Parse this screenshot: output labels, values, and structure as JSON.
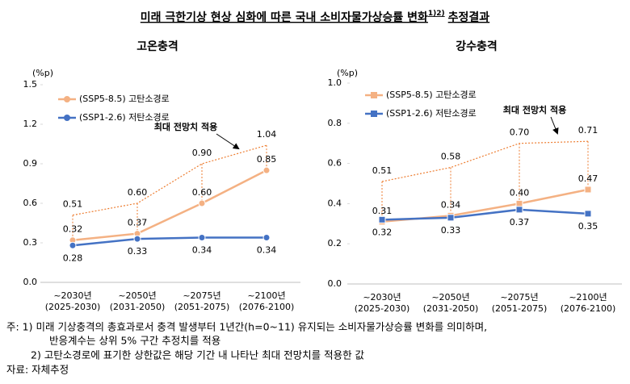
{
  "title": {
    "text": "미래 극한기상 현상 심화에 따른 국내 소비자물가상승률 변화",
    "superscript": "1)2)",
    "suffix": "추정결과"
  },
  "chart_data": [
    {
      "type": "line",
      "title": "고온충격",
      "y_label": "(%p)",
      "marker": "circle",
      "categories": [
        "~2030년",
        "~2050년",
        "~2075년",
        "~2100년"
      ],
      "category_sublabels": [
        "(2025-2030)",
        "(2031-2050)",
        "(2051-2075)",
        "(2076-2100)"
      ],
      "ylim": [
        0,
        1.5
      ],
      "yticks": [
        {
          "value": 0,
          "label": "0.0"
        },
        0.3,
        0.6,
        0.9,
        1.2,
        1.5
      ],
      "annotation": "최대 전망치 적용",
      "series": [
        {
          "name": "(SSP5-8.5) 고탄소경로",
          "color": "#f4b183",
          "values": [
            0.32,
            0.37,
            0.6,
            0.85
          ],
          "value_labels": [
            "0.32",
            "0.37",
            "0.60",
            "0.85"
          ],
          "label_position": "above"
        },
        {
          "name": "(SSP1-2.6) 저탄소경로",
          "color": "#4472c4",
          "values": [
            0.28,
            0.33,
            0.34,
            0.34
          ],
          "value_labels": [
            "0.28",
            "0.33",
            "0.34",
            "0.34"
          ],
          "label_position": "below"
        },
        {
          "color": "#ed7d31",
          "line_style": "dotted",
          "drop_lines": true,
          "values": [
            0.51,
            0.6,
            0.9,
            1.04
          ],
          "value_labels": [
            "0.51",
            "0.60",
            "0.90",
            "1.04"
          ],
          "label_position": "above"
        }
      ]
    },
    {
      "type": "line",
      "title": "강수충격",
      "y_label": "(%p)",
      "marker": "square",
      "categories": [
        "~2030년",
        "~2050년",
        "~2075년",
        "~2100년"
      ],
      "category_sublabels": [
        "(2025-2030)",
        "(2031-2050)",
        "(2051-2075)",
        "(2076-2100)"
      ],
      "ylim": [
        0,
        1.0
      ],
      "yticks": [
        {
          "value": 0,
          "label": "0.0"
        },
        0.2,
        0.4,
        0.6,
        0.8,
        {
          "value": 1.0,
          "label": "1.0"
        }
      ],
      "annotation": "최대 전망치 적용",
      "series": [
        {
          "name": "(SSP5-8.5) 고탄소경로",
          "color": "#f4b183",
          "values": [
            0.31,
            0.34,
            0.4,
            0.47
          ],
          "value_labels": [
            "0.31",
            "0.34",
            "0.40",
            "0.47"
          ],
          "label_position": "above"
        },
        {
          "name": "(SSP1-2.6) 저탄소경로",
          "color": "#4472c4",
          "values": [
            0.32,
            0.33,
            0.37,
            0.35
          ],
          "value_labels": [
            "0.32",
            "0.33",
            "0.37",
            "0.35"
          ],
          "label_position": "below"
        },
        {
          "color": "#ed7d31",
          "line_style": "dotted",
          "drop_lines": true,
          "values": [
            0.51,
            0.58,
            0.7,
            0.71
          ],
          "value_labels": [
            "0.51",
            "0.58",
            "0.70",
            "0.71"
          ],
          "label_position": "above"
        }
      ]
    }
  ],
  "notes": [
    "주: 1) 미래 기상충격의 총효과로서 충격 발생부터 1년간(h=0~11) 유지되는 소비자물가상승률 변화를 의미하며,",
    "반응계수는 상위 5% 구간 추정치를 적용",
    "2) 고탄소경로에 표기한 상한값은 해당 기간 내 나타난 최대 전망치를 적용한 값",
    "자료: 자체추정"
  ]
}
